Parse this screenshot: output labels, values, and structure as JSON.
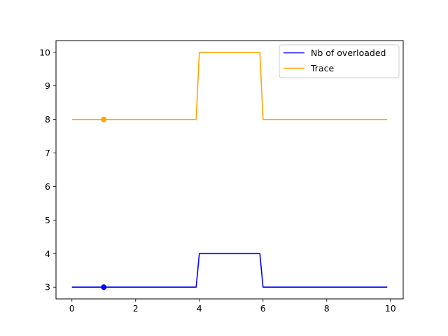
{
  "chart_data": {
    "type": "line",
    "title": "",
    "xlabel": "",
    "ylabel": "",
    "xlim": [
      -0.5,
      10.4
    ],
    "ylim": [
      2.65,
      10.35
    ],
    "xticks": [
      0,
      2,
      4,
      6,
      8,
      10
    ],
    "yticks": [
      3,
      4,
      5,
      6,
      7,
      8,
      9,
      10
    ],
    "grid": false,
    "legend_position": "top-right",
    "series": [
      {
        "name": "Nb of overloaded",
        "color": "#0000ff",
        "x": [
          0,
          0.1,
          0.2,
          0.3,
          0.4,
          0.5,
          0.6,
          0.7,
          0.8,
          0.9,
          1.0,
          1.1,
          1.2,
          1.3,
          1.4,
          1.5,
          1.6,
          1.7,
          1.8,
          1.9,
          2.0,
          2.1,
          2.2,
          2.3,
          2.4,
          2.5,
          2.6,
          2.7,
          2.8,
          2.9,
          3.0,
          3.1,
          3.2,
          3.3,
          3.4,
          3.5,
          3.6,
          3.7,
          3.8,
          3.9,
          4.0,
          4.1,
          4.2,
          4.3,
          4.4,
          4.5,
          4.6,
          4.7,
          4.8,
          4.9,
          5.0,
          5.1,
          5.2,
          5.3,
          5.4,
          5.5,
          5.6,
          5.7,
          5.8,
          5.9,
          6.0,
          6.1,
          6.2,
          6.3,
          6.4,
          6.5,
          6.6,
          6.7,
          6.8,
          6.9,
          7.0,
          7.1,
          7.2,
          7.3,
          7.4,
          7.5,
          7.6,
          7.7,
          7.8,
          7.9,
          8.0,
          8.1,
          8.2,
          8.3,
          8.4,
          8.5,
          8.6,
          8.7,
          8.8,
          8.9,
          9.0,
          9.1,
          9.2,
          9.3,
          9.4,
          9.5,
          9.6,
          9.7,
          9.8,
          9.9
        ],
        "y": [
          3,
          3,
          3,
          3,
          3,
          3,
          3,
          3,
          3,
          3,
          3,
          3,
          3,
          3,
          3,
          3,
          3,
          3,
          3,
          3,
          3,
          3,
          3,
          3,
          3,
          3,
          3,
          3,
          3,
          3,
          3,
          3,
          3,
          3,
          3,
          3,
          3,
          3,
          3,
          3,
          4,
          4,
          4,
          4,
          4,
          4,
          4,
          4,
          4,
          4,
          4,
          4,
          4,
          4,
          4,
          4,
          4,
          4,
          4,
          4,
          3,
          3,
          3,
          3,
          3,
          3,
          3,
          3,
          3,
          3,
          3,
          3,
          3,
          3,
          3,
          3,
          3,
          3,
          3,
          3,
          3,
          3,
          3,
          3,
          3,
          3,
          3,
          3,
          3,
          3,
          3,
          3,
          3,
          3,
          3,
          3,
          3,
          3,
          3,
          3
        ],
        "marker": {
          "x": 1.0,
          "y": 3
        }
      },
      {
        "name": "Trace",
        "color": "#ffa500",
        "x": [
          0,
          0.1,
          0.2,
          0.3,
          0.4,
          0.5,
          0.6,
          0.7,
          0.8,
          0.9,
          1.0,
          1.1,
          1.2,
          1.3,
          1.4,
          1.5,
          1.6,
          1.7,
          1.8,
          1.9,
          2.0,
          2.1,
          2.2,
          2.3,
          2.4,
          2.5,
          2.6,
          2.7,
          2.8,
          2.9,
          3.0,
          3.1,
          3.2,
          3.3,
          3.4,
          3.5,
          3.6,
          3.7,
          3.8,
          3.9,
          4.0,
          4.1,
          4.2,
          4.3,
          4.4,
          4.5,
          4.6,
          4.7,
          4.8,
          4.9,
          5.0,
          5.1,
          5.2,
          5.3,
          5.4,
          5.5,
          5.6,
          5.7,
          5.8,
          5.9,
          6.0,
          6.1,
          6.2,
          6.3,
          6.4,
          6.5,
          6.6,
          6.7,
          6.8,
          6.9,
          7.0,
          7.1,
          7.2,
          7.3,
          7.4,
          7.5,
          7.6,
          7.7,
          7.8,
          7.9,
          8.0,
          8.1,
          8.2,
          8.3,
          8.4,
          8.5,
          8.6,
          8.7,
          8.8,
          8.9,
          9.0,
          9.1,
          9.2,
          9.3,
          9.4,
          9.5,
          9.6,
          9.7,
          9.8,
          9.9
        ],
        "y": [
          8,
          8,
          8,
          8,
          8,
          8,
          8,
          8,
          8,
          8,
          8,
          8,
          8,
          8,
          8,
          8,
          8,
          8,
          8,
          8,
          8,
          8,
          8,
          8,
          8,
          8,
          8,
          8,
          8,
          8,
          8,
          8,
          8,
          8,
          8,
          8,
          8,
          8,
          8,
          8,
          10,
          10,
          10,
          10,
          10,
          10,
          10,
          10,
          10,
          10,
          10,
          10,
          10,
          10,
          10,
          10,
          10,
          10,
          10,
          10,
          8,
          8,
          8,
          8,
          8,
          8,
          8,
          8,
          8,
          8,
          8,
          8,
          8,
          8,
          8,
          8,
          8,
          8,
          8,
          8,
          8,
          8,
          8,
          8,
          8,
          8,
          8,
          8,
          8,
          8,
          8,
          8,
          8,
          8,
          8,
          8,
          8,
          8,
          8,
          8
        ],
        "marker": {
          "x": 1.0,
          "y": 8
        }
      }
    ]
  }
}
